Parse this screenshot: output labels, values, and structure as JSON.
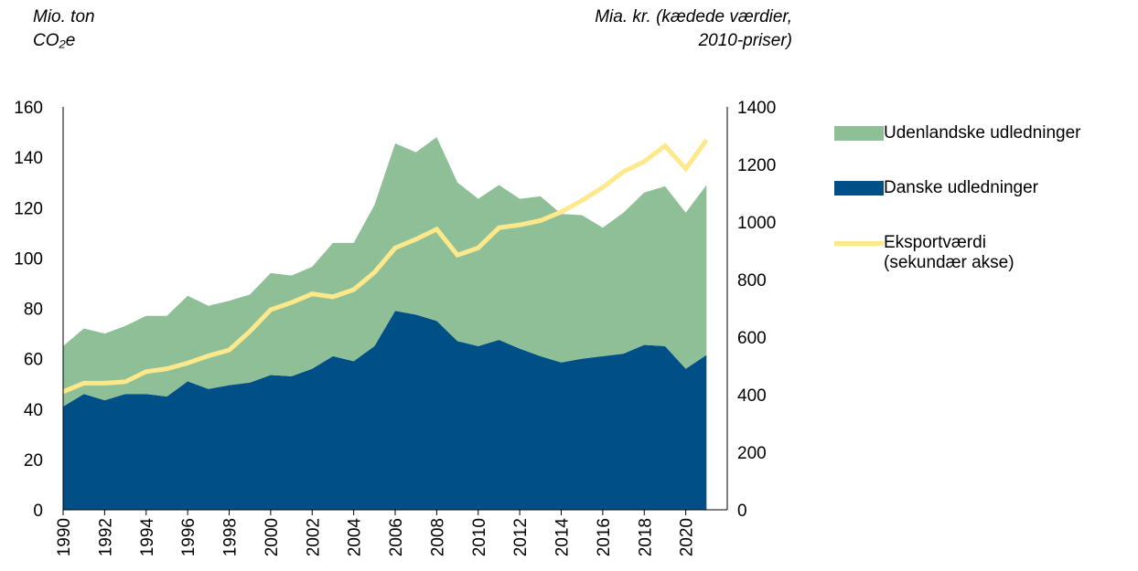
{
  "chart_data": {
    "type": "stacked_area_line",
    "y_label_lines": [
      "Mio. ton",
      "CO₂e"
    ],
    "y2_label_lines": [
      "Mia. kr. (kædede værdier,",
      "2010-priser)"
    ],
    "x": [
      1990,
      1991,
      1992,
      1993,
      1994,
      1995,
      1996,
      1997,
      1998,
      1999,
      2000,
      2001,
      2002,
      2003,
      2004,
      2005,
      2006,
      2007,
      2008,
      2009,
      2010,
      2011,
      2012,
      2013,
      2014,
      2015,
      2016,
      2017,
      2018,
      2019,
      2020,
      2021
    ],
    "xlim": [
      1990,
      2022
    ],
    "xticks": [
      1990,
      1992,
      1994,
      1996,
      1998,
      2000,
      2002,
      2004,
      2006,
      2008,
      2010,
      2012,
      2014,
      2016,
      2018,
      2020
    ],
    "ylim": [
      0,
      160
    ],
    "yticks": [
      0,
      20,
      40,
      60,
      80,
      100,
      120,
      140,
      160
    ],
    "y2lim": [
      0,
      1400
    ],
    "y2ticks": [
      0,
      200,
      400,
      600,
      800,
      1000,
      1200,
      1400
    ],
    "series": [
      {
        "name": "Udenlandske udledninger",
        "color": "#8fbf96",
        "kind": "area",
        "values": [
          24,
          26,
          26.5,
          27,
          31,
          32,
          34,
          33,
          33.5,
          35,
          40.5,
          40,
          40.5,
          45,
          47,
          56,
          66.5,
          64.5,
          73,
          63,
          58.5,
          61.5,
          59.5,
          63.5,
          59,
          57,
          51,
          56,
          60.5,
          63.5,
          62,
          67.5
        ]
      },
      {
        "name": "Danske udledninger",
        "color": "#004f86",
        "kind": "area",
        "values": [
          41,
          46,
          43.5,
          46,
          46,
          45,
          51,
          48,
          49.5,
          50.5,
          53.5,
          53,
          56,
          61,
          59,
          65,
          79,
          77.5,
          75,
          67,
          65,
          67.5,
          64,
          61,
          58.5,
          60,
          61,
          62,
          65.5,
          65,
          56,
          61.5
        ]
      },
      {
        "name": "Eksportværdi (sekundær akse)",
        "color": "#fde98c",
        "kind": "line",
        "axis": "y2",
        "values": [
          410,
          440,
          440,
          445,
          480,
          490,
          510,
          535,
          555,
          620,
          695,
          720,
          750,
          740,
          765,
          825,
          910,
          940,
          975,
          885,
          910,
          980,
          990,
          1005,
          1035,
          1075,
          1120,
          1175,
          1210,
          1265,
          1185,
          1285
        ]
      }
    ]
  }
}
